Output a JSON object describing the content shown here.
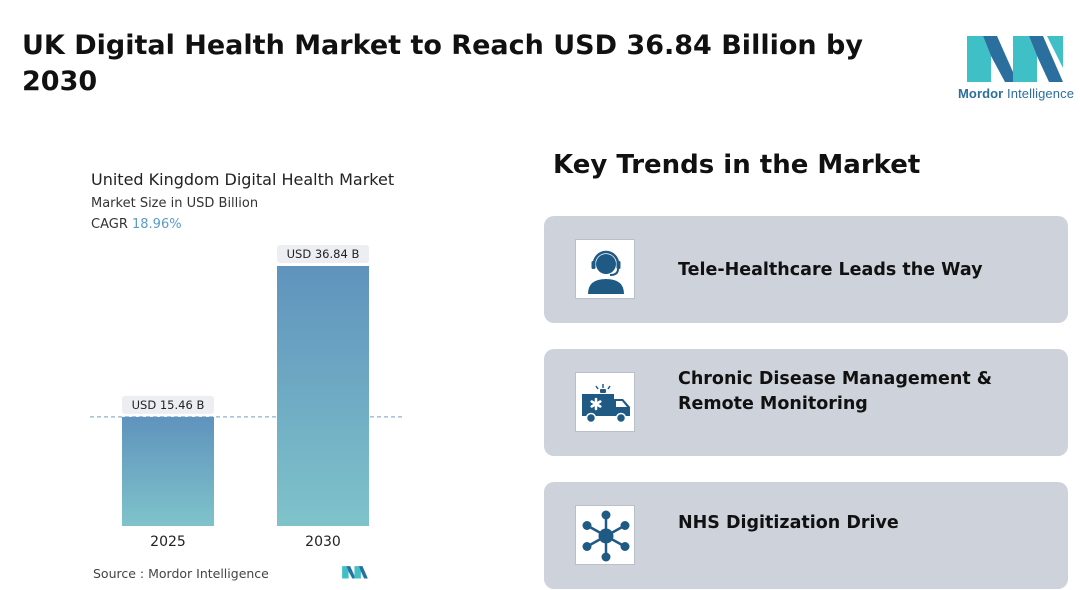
{
  "header": {
    "title": "UK Digital Health Market to Reach  USD 36.84 Billion by\n2030"
  },
  "brand": {
    "name_bold": "Mordor",
    "name_rest": " Intelligence",
    "logo_icon": "mordor-intelligence-logo",
    "colors": {
      "teal": "#3fbfc6",
      "blue": "#2b6f9e"
    }
  },
  "chart": {
    "title": "United Kingdom Digital Health Market",
    "subtitle": "Market Size in USD Billion",
    "cagr_label": "CAGR",
    "cagr_value": "18.96%"
  },
  "chart_data": {
    "type": "bar",
    "title": "United Kingdom Digital Health Market",
    "ylabel": "Market Size in USD Billion",
    "categories": [
      "2025",
      "2030"
    ],
    "values": [
      15.46,
      36.84
    ],
    "data_labels": [
      "USD 15.46 B",
      "USD 36.84 B"
    ],
    "ylim": [
      0,
      36.84
    ],
    "grid": false,
    "reference_line": 15.46,
    "colors": {
      "bar_top": "#5f93bd",
      "bar_bottom": "#7fc3ca",
      "reference_line": "#8fb3cf",
      "label_bg": "#eceef1"
    }
  },
  "source": {
    "text": "Source :  Mordor Intelligence"
  },
  "trends": {
    "heading": "Key Trends in the Market",
    "items": [
      {
        "label": "Tele-Healthcare Leads the Way",
        "icon": "support-agent-icon"
      },
      {
        "label": "Chronic Disease Management & Remote Monitoring",
        "icon": "ambulance-icon"
      },
      {
        "label": "NHS Digitization Drive",
        "icon": "network-hub-icon"
      }
    ],
    "colors": {
      "card_bg": "#ced3db",
      "icon_color": "#1f5a85"
    }
  }
}
